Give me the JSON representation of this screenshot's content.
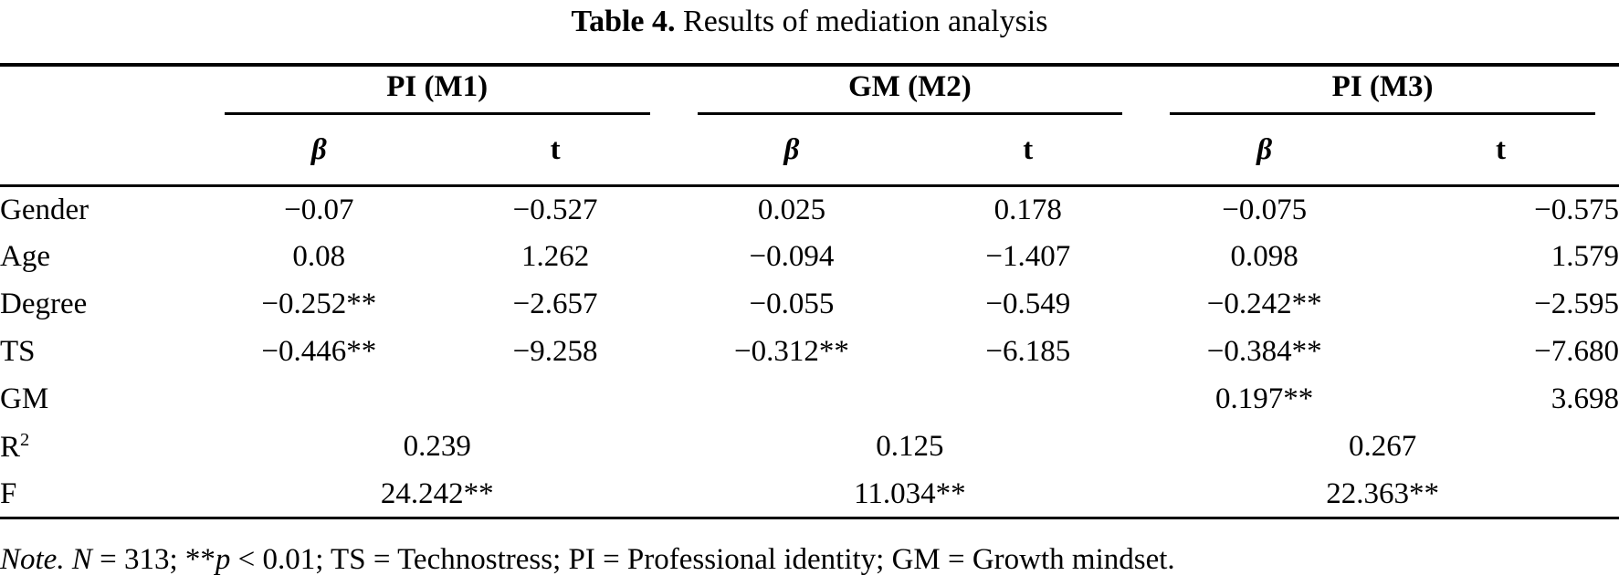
{
  "title": {
    "bold": "Table 4.",
    "rest": "Results of mediation analysis"
  },
  "table": {
    "groups": [
      "PI (M1)",
      "GM (M2)",
      "PI (M3)"
    ],
    "subheaders": {
      "beta": "β",
      "t": "t"
    },
    "rows": [
      {
        "label": "Gender",
        "cells": [
          "−0.07",
          "−0.527",
          "0.025",
          "0.178",
          "−0.075",
          "−0.575"
        ]
      },
      {
        "label": "Age",
        "cells": [
          "0.08",
          "1.262",
          "−0.094",
          "−1.407",
          "0.098",
          "1.579"
        ]
      },
      {
        "label": "Degree",
        "cells": [
          "−0.252**",
          "−2.657",
          "−0.055",
          "−0.549",
          "−0.242**",
          "−2.595"
        ]
      },
      {
        "label": "TS",
        "cells": [
          "−0.446**",
          "−9.258",
          "−0.312**",
          "−6.185",
          "−0.384**",
          "−7.680"
        ]
      },
      {
        "label": "GM",
        "cells": [
          "",
          "",
          "",
          "",
          "0.197**",
          "3.698"
        ]
      }
    ],
    "summary_rows": [
      {
        "label": "R",
        "label_sup": "2",
        "cells": [
          "0.239",
          "0.125",
          "0.267"
        ]
      },
      {
        "label": "F",
        "label_sup": "",
        "cells": [
          "24.242**",
          "11.034**",
          "22.363**"
        ]
      }
    ]
  },
  "note": {
    "note_label": "Note.",
    "n_symbol": "N",
    "after_n": " = 313; **",
    "p_symbol": "p",
    "rest": " < 0.01; TS = Technostress; PI = Professional identity; GM = Growth mindset."
  },
  "colors": {
    "text": "#000000",
    "background": "#ffffff",
    "rule": "#000000"
  }
}
